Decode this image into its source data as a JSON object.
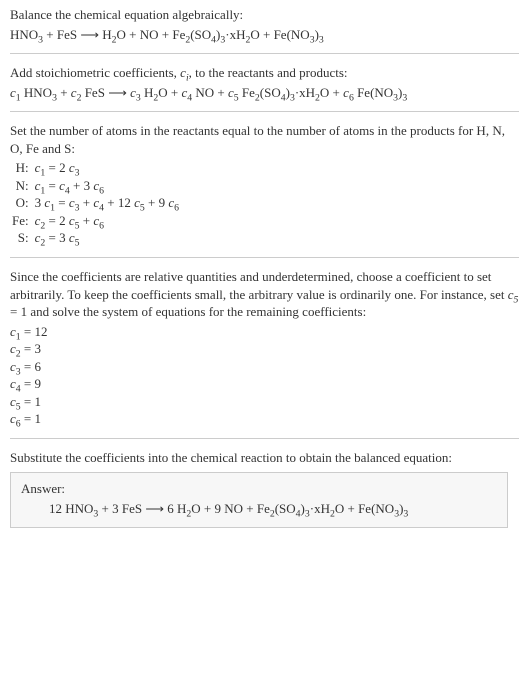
{
  "typography": {
    "font_family": "Georgia, 'Times New Roman', serif",
    "base_font_size_pt": 10,
    "text_color": "#333333",
    "background_color": "#ffffff",
    "rule_color": "#cccccc",
    "answer_box_bg": "#f7f7f7",
    "answer_box_border": "#cccccc"
  },
  "intro": {
    "line1": "Balance the chemical equation algebraically:",
    "equation_plain": "HNO3 + FeS ⟶ H2O + NO + Fe2(SO4)3·xH2O + Fe(NO3)3"
  },
  "section_coeffs": {
    "intro_prefix": "Add stoichiometric coefficients, ",
    "intro_ci": "c_i",
    "intro_suffix": ", to the reactants and products:",
    "equation_plain": "c1 HNO3 + c2 FeS ⟶ c3 H2O + c4 NO + c5 Fe2(SO4)3·xH2O + c6 Fe(NO3)3"
  },
  "section_system": {
    "intro": "Set the number of atoms in the reactants equal to the number of atoms in the products for H, N, O, Fe and S:",
    "rows": [
      {
        "label": "H:",
        "eq": "c1 = 2 c3"
      },
      {
        "label": "N:",
        "eq": "c1 = c4 + 3 c6"
      },
      {
        "label": "O:",
        "eq": "3 c1 = c3 + c4 + 12 c5 + 9 c6"
      },
      {
        "label": "Fe:",
        "eq": "c2 = 2 c5 + c6"
      },
      {
        "label": "S:",
        "eq": "c2 = 3 c5"
      }
    ]
  },
  "section_choice": {
    "intro_a": "Since the coefficients are relative quantities and underdetermined, choose a coefficient to set arbitrarily. To keep the coefficients small, the arbitrary value is ordinarily one. For instance, set ",
    "intro_b": " = 1 and solve the system of equations for the remaining coefficients:",
    "set_var": "c5",
    "coeffs": [
      {
        "name": "c1",
        "val": "12"
      },
      {
        "name": "c2",
        "val": "3"
      },
      {
        "name": "c3",
        "val": "6"
      },
      {
        "name": "c4",
        "val": "9"
      },
      {
        "name": "c5",
        "val": "1"
      },
      {
        "name": "c6",
        "val": "1"
      }
    ]
  },
  "section_sub": {
    "intro": "Substitute the coefficients into the chemical reaction to obtain the balanced equation:"
  },
  "answer": {
    "label": "Answer:",
    "equation_plain": "12 HNO3 + 3 FeS ⟶ 6 H2O + 9 NO + Fe2(SO4)3·xH2O + Fe(NO3)3"
  }
}
